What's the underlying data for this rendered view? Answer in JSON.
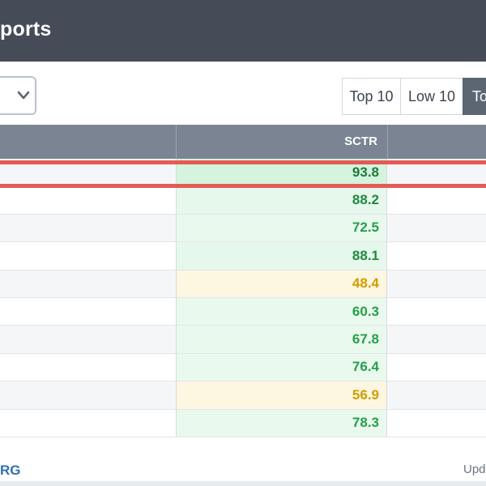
{
  "header": {
    "title": "ports"
  },
  "toolbar": {
    "buttons": [
      {
        "label": "Top 10"
      },
      {
        "label": "Low 10"
      },
      {
        "label": "To"
      }
    ]
  },
  "table": {
    "header": {
      "sctr": "SCTR"
    },
    "rows": [
      {
        "sctr": "93.8"
      },
      {
        "sctr": "88.2"
      },
      {
        "sctr": "72.5"
      },
      {
        "sctr": "88.1"
      },
      {
        "sctr": "48.4"
      },
      {
        "sctr": "60.3"
      },
      {
        "sctr": "67.8"
      },
      {
        "sctr": "76.4"
      },
      {
        "sctr": "56.9"
      },
      {
        "sctr": "78.3"
      }
    ]
  },
  "footer": {
    "left": "RG",
    "right": "Upd"
  },
  "colors": {
    "header_bg": "#464c57",
    "table_header_bg": "#7a8493",
    "highlight": "#e45b55",
    "high_green": "#1e7b3a",
    "mid_green": "#24a04a",
    "yellow": "#d19d00"
  }
}
